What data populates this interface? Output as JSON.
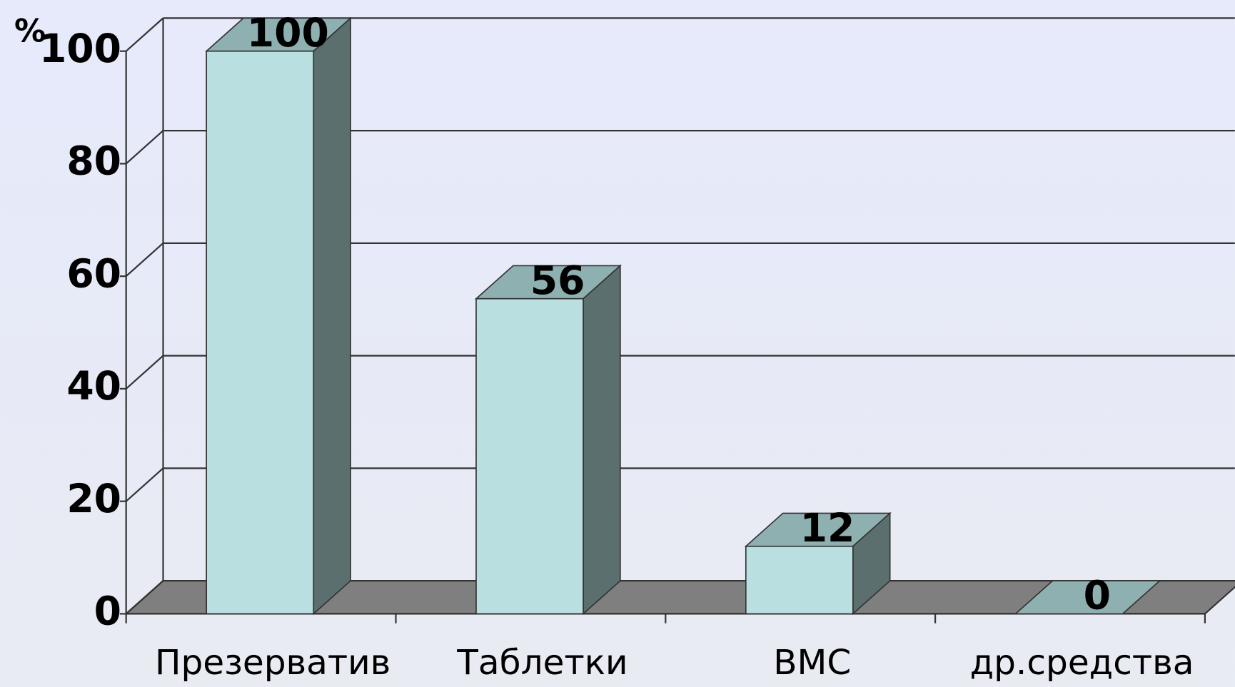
{
  "chart_data": {
    "type": "bar3d",
    "y_label": "%",
    "categories": [
      "Презерватив",
      "Таблетки",
      "ВМС",
      "др.средства"
    ],
    "values": [
      100,
      56,
      12,
      0
    ],
    "color": "#b9dfe0",
    "top_color": "#8fb0b0",
    "side_color": "#5b6f6f",
    "floor_color": "#7f7f7f",
    "ylim": [
      0,
      100
    ],
    "yticks": [
      0,
      20,
      40,
      60,
      80,
      100
    ],
    "grid": true
  }
}
